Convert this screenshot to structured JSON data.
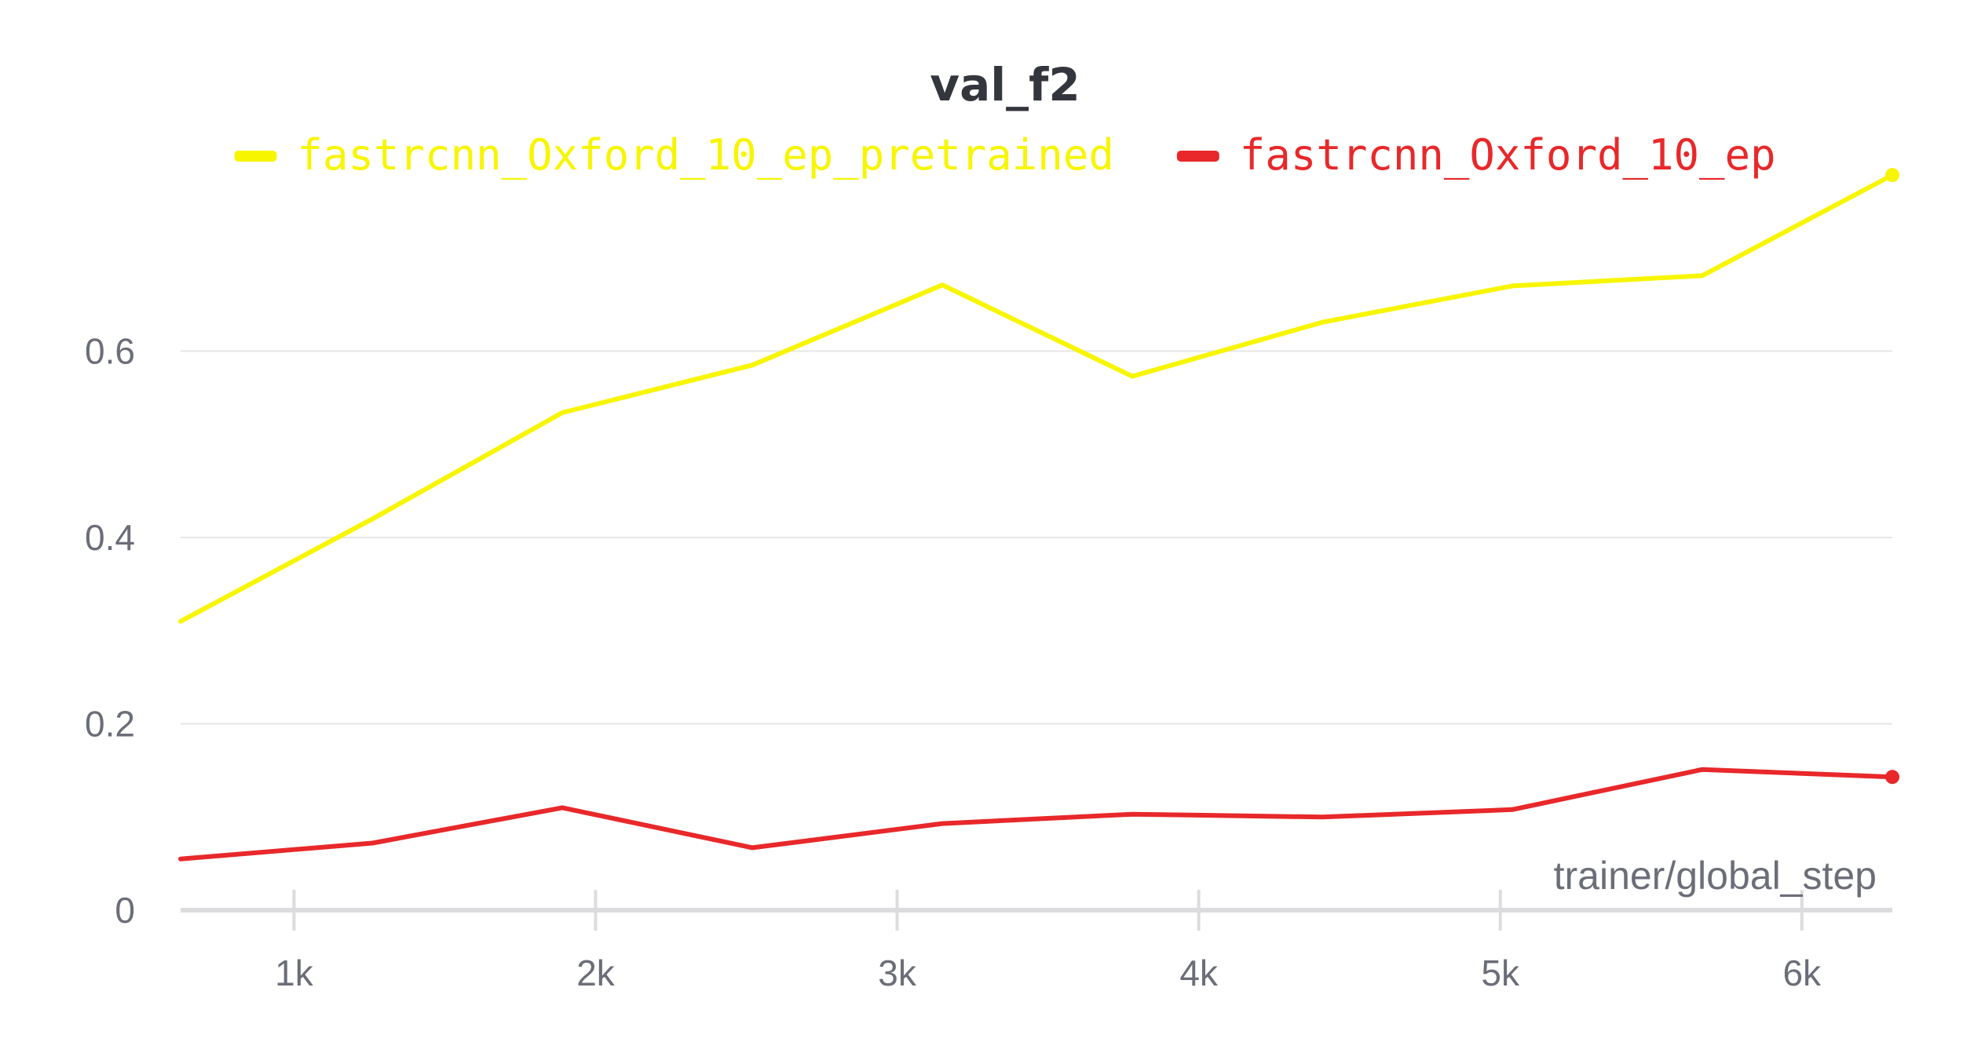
{
  "chart_data": {
    "type": "line",
    "title": "val_f2",
    "xlabel": "trainer/global_step",
    "ylabel": "",
    "xlim": [
      624,
      6300
    ],
    "ylim": [
      0,
      0.8
    ],
    "x_ticks": [
      {
        "value": 1000,
        "label": "1k"
      },
      {
        "value": 2000,
        "label": "2k"
      },
      {
        "value": 3000,
        "label": "3k"
      },
      {
        "value": 4000,
        "label": "4k"
      },
      {
        "value": 5000,
        "label": "5k"
      },
      {
        "value": 6000,
        "label": "6k"
      }
    ],
    "y_ticks": [
      {
        "value": 0,
        "label": "0"
      },
      {
        "value": 0.2,
        "label": "0.2"
      },
      {
        "value": 0.4,
        "label": "0.4"
      },
      {
        "value": 0.6,
        "label": "0.6"
      }
    ],
    "grid": true,
    "legend_position": "top",
    "series": [
      {
        "name": "fastrcnn_Oxford_10_ep_pretrained",
        "color": "#f7f500",
        "x": [
          624,
          1260,
          1890,
          2520,
          3150,
          3780,
          4410,
          5040,
          5670,
          6300
        ],
        "y": [
          0.31,
          0.42,
          0.534,
          0.585,
          0.671,
          0.573,
          0.631,
          0.67,
          0.681,
          0.789
        ]
      },
      {
        "name": "fastrcnn_Oxford_10_ep",
        "color": "#e8282a",
        "x": [
          624,
          1260,
          1890,
          2520,
          3150,
          3780,
          4410,
          5040,
          5670,
          6300
        ],
        "y": [
          0.055,
          0.072,
          0.11,
          0.067,
          0.093,
          0.103,
          0.1,
          0.108,
          0.151,
          0.143
        ]
      }
    ]
  }
}
